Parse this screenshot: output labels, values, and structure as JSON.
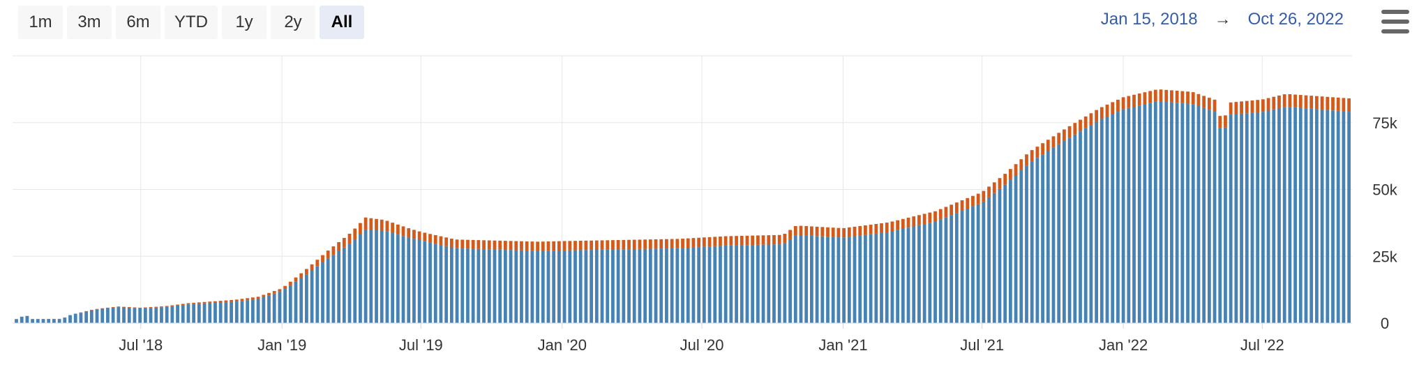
{
  "toolbar": {
    "buttons": [
      {
        "label": "1m",
        "selected": false
      },
      {
        "label": "3m",
        "selected": false
      },
      {
        "label": "6m",
        "selected": false
      },
      {
        "label": "YTD",
        "selected": false
      },
      {
        "label": "1y",
        "selected": false
      },
      {
        "label": "2y",
        "selected": false
      },
      {
        "label": "All",
        "selected": true
      }
    ]
  },
  "date_range": {
    "from": "Jan 15, 2018",
    "arrow": "→",
    "to": "Oct 26, 2022"
  },
  "menu": {
    "icon": "hamburger-menu-icon"
  },
  "chart_data": {
    "type": "bar",
    "stacked": true,
    "x_type": "date",
    "x_range": [
      "2018-01-15",
      "2022-10-26"
    ],
    "ylim": [
      0,
      100000
    ],
    "y_ticks": [
      0,
      25000,
      50000,
      75000
    ],
    "y_tick_labels": [
      "0",
      "25k",
      "50k",
      "75k"
    ],
    "x_tick_labels": [
      {
        "date": "2018-07-01",
        "label": "Jul '18"
      },
      {
        "date": "2019-01-01",
        "label": "Jan '19"
      },
      {
        "date": "2019-07-01",
        "label": "Jul '19"
      },
      {
        "date": "2020-01-01",
        "label": "Jan '20"
      },
      {
        "date": "2020-07-01",
        "label": "Jul '20"
      },
      {
        "date": "2021-01-01",
        "label": "Jan '21"
      },
      {
        "date": "2021-07-01",
        "label": "Jul '21"
      },
      {
        "date": "2022-01-01",
        "label": "Jan '22"
      },
      {
        "date": "2022-07-01",
        "label": "Jul '22"
      }
    ],
    "y_axis_position": "right",
    "grid": true,
    "legend": "none",
    "series": [
      {
        "color": "#4682b4",
        "anchors": [
          [
            "2018-01-20",
            1500
          ],
          [
            "2018-02-01",
            3000
          ],
          [
            "2018-02-10",
            1500
          ],
          [
            "2018-03-20",
            1500
          ],
          [
            "2018-04-01",
            3000
          ],
          [
            "2018-05-01",
            5000
          ],
          [
            "2018-06-01",
            6000
          ],
          [
            "2018-07-01",
            5500
          ],
          [
            "2018-08-01",
            6000
          ],
          [
            "2018-09-01",
            7000
          ],
          [
            "2018-10-01",
            7500
          ],
          [
            "2018-11-01",
            8000
          ],
          [
            "2018-12-01",
            9000
          ],
          [
            "2019-01-01",
            12000
          ],
          [
            "2019-02-01",
            18000
          ],
          [
            "2019-03-01",
            24000
          ],
          [
            "2019-04-01",
            30000
          ],
          [
            "2019-04-20",
            35000
          ],
          [
            "2019-05-15",
            34500
          ],
          [
            "2019-06-15",
            32000
          ],
          [
            "2019-07-15",
            30000
          ],
          [
            "2019-08-15",
            28000
          ],
          [
            "2019-12-01",
            27000
          ],
          [
            "2020-06-01",
            28000
          ],
          [
            "2020-08-01",
            29000
          ],
          [
            "2020-10-15",
            29500
          ],
          [
            "2020-11-01",
            33000
          ],
          [
            "2021-01-01",
            32000
          ],
          [
            "2021-03-01",
            34000
          ],
          [
            "2021-05-01",
            38000
          ],
          [
            "2021-07-01",
            45000
          ],
          [
            "2021-08-01",
            52000
          ],
          [
            "2021-09-01",
            60000
          ],
          [
            "2021-10-15",
            68000
          ],
          [
            "2021-12-01",
            76000
          ],
          [
            "2022-01-01",
            80000
          ],
          [
            "2022-02-15",
            83000
          ],
          [
            "2022-04-01",
            82000
          ],
          [
            "2022-05-01",
            79000
          ],
          [
            "2022-05-10",
            70000
          ],
          [
            "2022-05-20",
            78000
          ],
          [
            "2022-07-01",
            79000
          ],
          [
            "2022-08-01",
            81000
          ],
          [
            "2022-10-26",
            79000
          ]
        ]
      },
      {
        "color": "#d35a1a",
        "anchors": [
          [
            "2018-01-20",
            0
          ],
          [
            "2018-08-01",
            300
          ],
          [
            "2019-01-01",
            1000
          ],
          [
            "2019-04-20",
            4500
          ],
          [
            "2019-07-01",
            3200
          ],
          [
            "2020-01-01",
            3500
          ],
          [
            "2020-11-01",
            3500
          ],
          [
            "2021-01-01",
            3500
          ],
          [
            "2021-07-01",
            4000
          ],
          [
            "2022-01-01",
            4500
          ],
          [
            "2022-02-15",
            4500
          ],
          [
            "2022-05-10",
            4500
          ],
          [
            "2022-10-26",
            5000
          ]
        ]
      }
    ]
  }
}
